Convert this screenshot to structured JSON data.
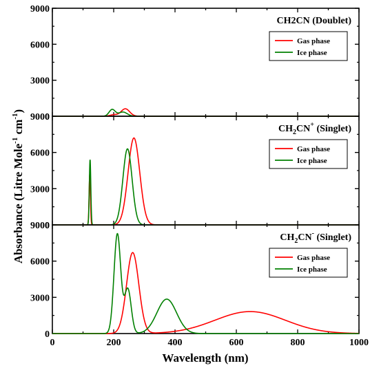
{
  "figure": {
    "ylabel_main": "Absorbance (Litre Mole",
    "ylabel_sup1": "-1",
    "ylabel_mid": " cm",
    "ylabel_sup2": "-1",
    "ylabel_end": ")",
    "xlabel": "Wavelength (nm)"
  },
  "chart_data": [
    {
      "type": "line",
      "title": "CH2CN (Doublet)",
      "xlim": [
        0,
        1000
      ],
      "ylim": [
        0,
        9000
      ],
      "yticks": [
        "0",
        "3000",
        "6000",
        "9000"
      ],
      "legend_position": "top-right",
      "series": [
        {
          "name": "Gas phase",
          "color": "#ff0000",
          "peaks": [
            {
              "center": 238,
              "height": 620,
              "width": 14
            },
            {
              "center": 200,
              "height": 120,
              "width": 12
            }
          ]
        },
        {
          "name": "Ice phase",
          "color": "#008000",
          "peaks": [
            {
              "center": 195,
              "height": 560,
              "width": 10
            },
            {
              "center": 230,
              "height": 350,
              "width": 14
            }
          ]
        }
      ]
    },
    {
      "type": "line",
      "title": "CH2CN+ (Singlet)",
      "title_main": "CH",
      "title_sub": "2",
      "title_mid": "CN",
      "title_sup": "+",
      "title_end": " (Singlet)",
      "xlim": [
        0,
        1000
      ],
      "ylim": [
        0,
        9000
      ],
      "yticks": [
        "0",
        "3000",
        "6000",
        "9000"
      ],
      "legend_position": "top-right",
      "series": [
        {
          "name": "Gas phase",
          "color": "#ff0000",
          "peaks": [
            {
              "center": 122,
              "height": 4200,
              "width": 2.2
            },
            {
              "center": 266,
              "height": 7200,
              "width": 19
            }
          ]
        },
        {
          "name": "Ice phase",
          "color": "#008000",
          "peaks": [
            {
              "center": 123,
              "height": 5400,
              "width": 2.4
            },
            {
              "center": 245,
              "height": 6300,
              "width": 15
            }
          ]
        }
      ]
    },
    {
      "type": "line",
      "title": "CH2CN- (Singlet)",
      "title_main": "CH",
      "title_sub": "2",
      "title_mid": "CN",
      "title_sup": "-",
      "title_end": " (Singlet)",
      "xlim": [
        0,
        1000
      ],
      "ylim": [
        0,
        9000
      ],
      "yticks": [
        "0",
        "3000",
        "6000",
        "9000"
      ],
      "xticks": [
        "0",
        "200",
        "400",
        "600",
        "800",
        "1000"
      ],
      "legend_position": "top-right",
      "series": [
        {
          "name": "Gas phase",
          "color": "#ff0000",
          "peaks": [
            {
              "center": 262,
              "height": 6700,
              "width": 20
            },
            {
              "center": 645,
              "height": 1820,
              "width": 115
            }
          ]
        },
        {
          "name": "Ice phase",
          "color": "#008000",
          "peaks": [
            {
              "center": 212,
              "height": 8250,
              "width": 11
            },
            {
              "center": 246,
              "height": 3700,
              "width": 11
            },
            {
              "center": 373,
              "height": 2850,
              "width": 32
            }
          ]
        }
      ]
    }
  ]
}
